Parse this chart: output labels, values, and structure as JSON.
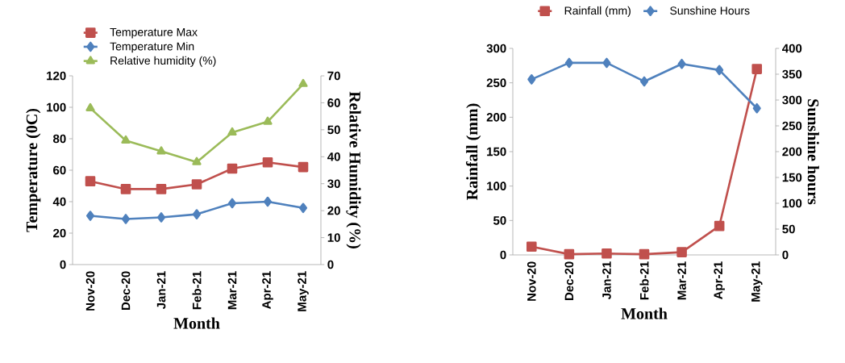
{
  "chart_data": [
    {
      "type": "line",
      "xlabel": "Month",
      "ylabel": "Temperature (0C)",
      "y2label": "Relative Humidity (%)",
      "categories": [
        "Nov-20",
        "Dec-20",
        "Jan-21",
        "Feb-21",
        "Mar-21",
        "Apr-21",
        "May-21"
      ],
      "series": [
        {
          "name": "Temperature  Max",
          "color": "#c0504d",
          "marker": "square",
          "values": [
            53,
            48,
            48,
            51,
            61,
            65,
            62
          ]
        },
        {
          "name": "Temperature  Min",
          "color": "#4f81bd",
          "marker": "diamond",
          "values": [
            31,
            29,
            30,
            32,
            39,
            40,
            36
          ]
        },
        {
          "name": "Relative humidity (%)",
          "color": "#9bbb59",
          "marker": "triangle",
          "axis": "y2",
          "values": [
            58,
            46,
            42,
            38,
            49,
            53,
            67
          ]
        }
      ],
      "ylim": [
        0,
        120
      ],
      "yticks": [
        0,
        20,
        40,
        60,
        80,
        100,
        120
      ],
      "y2lim": [
        0,
        70
      ],
      "y2ticks": [
        0,
        10,
        20,
        30,
        40,
        50,
        60,
        70
      ],
      "grid": false,
      "legend": "top left"
    },
    {
      "type": "line",
      "xlabel": "Month",
      "ylabel": "Rainfall (mm)",
      "y2label": "Sunshine hours",
      "categories": [
        "Nov-20",
        "Dec-20",
        "Jan-21",
        "Feb-21",
        "Mar-21",
        "Apr-21",
        "May-21"
      ],
      "series": [
        {
          "name": "Rainfall (mm)",
          "color": "#c0504d",
          "marker": "square",
          "values": [
            12,
            1,
            2,
            1,
            4,
            42,
            270
          ]
        },
        {
          "name": "Sunshine Hours",
          "color": "#4f81bd",
          "marker": "diamond",
          "axis": "y2",
          "values": [
            340,
            372,
            372,
            336,
            370,
            358,
            284
          ]
        }
      ],
      "ylim": [
        0,
        300
      ],
      "yticks": [
        0,
        50,
        100,
        150,
        200,
        250,
        300
      ],
      "y2lim": [
        0,
        400
      ],
      "y2ticks": [
        0,
        50,
        100,
        150,
        200,
        250,
        300,
        350,
        400
      ],
      "grid": false,
      "legend": "top"
    }
  ]
}
